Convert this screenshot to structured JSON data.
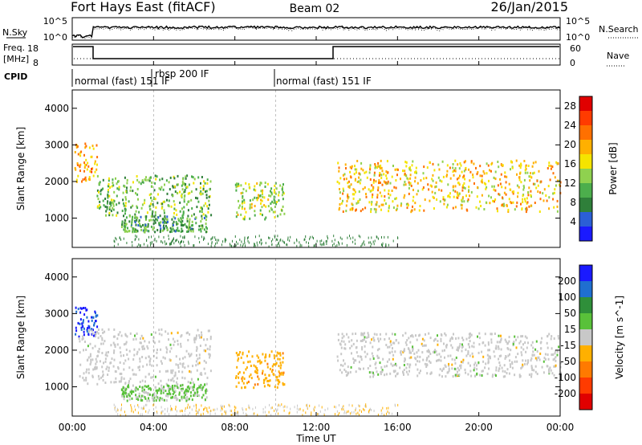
{
  "header": {
    "station": "Fort Hays East (fitACF)",
    "beam": "Beam 02",
    "date": "26/Jan/2015"
  },
  "summary_panels": {
    "nsky": {
      "left_label": "N.Sky",
      "right_label": "N.Search",
      "left_ticks": [
        "10^5",
        "10^0"
      ],
      "right_ticks": [
        "10^5",
        "10^0"
      ]
    },
    "freq": {
      "left_label_line1": "Freq.",
      "left_label_line2": "[MHz]",
      "right_label": "Nave",
      "left_ticks": [
        "18",
        "8"
      ],
      "right_ticks": [
        "60",
        "0"
      ]
    },
    "cpid": {
      "label": "CPID",
      "segments": [
        "normal (fast) 151 IF",
        "rbsp 200 IF",
        "normal (fast) 151 IF"
      ]
    }
  },
  "chart_data": [
    {
      "type": "heatmap",
      "title": "",
      "xlabel": "Time UT",
      "ylabel": "Slant Range [km]",
      "x_ticks": [
        "00:00",
        "04:00",
        "08:00",
        "12:00",
        "16:00",
        "20:00",
        "00:00"
      ],
      "y_ticks": [
        "1000",
        "2000",
        "3000",
        "4000"
      ],
      "ylim": [
        200,
        4500
      ],
      "colorbar": {
        "label": "Power [dB]",
        "ticks": [
          "4",
          "8",
          "12",
          "16",
          "20",
          "24",
          "28"
        ],
        "range": [
          0,
          30
        ],
        "colors": [
          "#1a1aff",
          "#2b5fd6",
          "#2f7f3a",
          "#4cae4c",
          "#8fd14f",
          "#f5e400",
          "#ffb000",
          "#ff7000",
          "#ff3b00",
          "#e00000"
        ]
      },
      "features": [
        {
          "t_start": 0.1,
          "t_end": 1.2,
          "r_min": 2000,
          "r_max": 3100,
          "value": 20
        },
        {
          "t_start": 1.2,
          "t_end": 6.8,
          "r_min": 1100,
          "r_max": 2200,
          "value": 12
        },
        {
          "t_start": 2.4,
          "t_end": 6.6,
          "r_min": 650,
          "r_max": 1100,
          "value": 10
        },
        {
          "t_start": 8.0,
          "t_end": 10.4,
          "r_min": 1000,
          "r_max": 2000,
          "value": 14
        },
        {
          "t_start": 13.0,
          "t_end": 24.0,
          "r_min": 1200,
          "r_max": 2600,
          "value": 18
        }
      ]
    },
    {
      "type": "heatmap",
      "title": "",
      "xlabel": "Time UT",
      "ylabel": "Slant Range [km]",
      "x_ticks": [
        "00:00",
        "04:00",
        "08:00",
        "12:00",
        "16:00",
        "20:00",
        "00:00"
      ],
      "y_ticks": [
        "1000",
        "2000",
        "3000",
        "4000"
      ],
      "ylim": [
        200,
        4500
      ],
      "colorbar": {
        "label": "Velocity [m s^-1]",
        "ticks": [
          "200",
          "100",
          "50",
          "15",
          "-15",
          "-50",
          "-100",
          "-200"
        ],
        "range": [
          -250,
          250
        ],
        "colors": [
          "#1a1aff",
          "#1f6fd0",
          "#2f8f3a",
          "#59c13a",
          "#c8c8c8",
          "#ffb000",
          "#ff7a00",
          "#ff3b00",
          "#e00000"
        ]
      },
      "features": [
        {
          "t_start": 0.1,
          "t_end": 1.2,
          "r_min": 2400,
          "r_max": 3200,
          "value": 200
        },
        {
          "t_start": 0.3,
          "t_end": 6.8,
          "r_min": 1100,
          "r_max": 2600,
          "value": 0
        },
        {
          "t_start": 2.4,
          "t_end": 6.6,
          "r_min": 650,
          "r_max": 1100,
          "value": 40
        },
        {
          "t_start": 8.0,
          "t_end": 10.4,
          "r_min": 1000,
          "r_max": 2000,
          "value": -60
        },
        {
          "t_start": 13.0,
          "t_end": 24.0,
          "r_min": 1300,
          "r_max": 2500,
          "value": 0
        }
      ]
    }
  ]
}
